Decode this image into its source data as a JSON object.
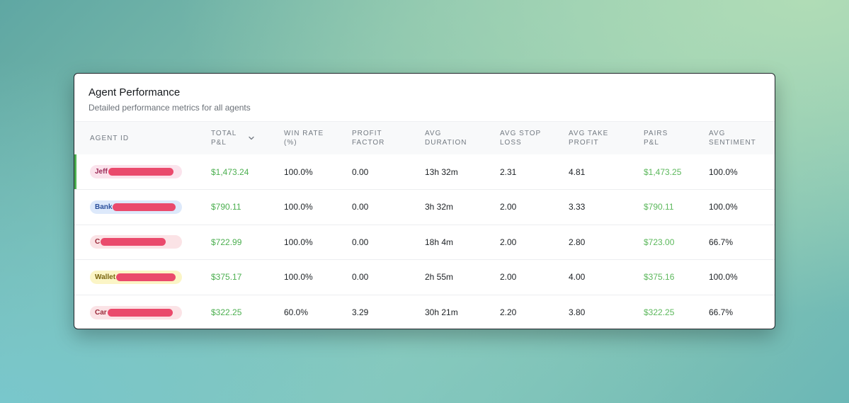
{
  "card": {
    "title": "Agent Performance",
    "subtitle": "Detailed performance metrics for all agents"
  },
  "columns": [
    {
      "line1": "AGENT ID",
      "line2": ""
    },
    {
      "line1": "TOTAL",
      "line2": "P&L",
      "sort_icon": "chevron-down-icon"
    },
    {
      "line1": "WIN RATE",
      "line2": "(%)"
    },
    {
      "line1": "PROFIT",
      "line2": "FACTOR"
    },
    {
      "line1": "AVG",
      "line2": "DURATION"
    },
    {
      "line1": "AVG STOP",
      "line2": "LOSS"
    },
    {
      "line1": "AVG TAKE",
      "line2": "PROFIT"
    },
    {
      "line1": "PAIRS",
      "line2": "P&L"
    },
    {
      "line1": "AVG",
      "line2": "SENTIMENT"
    }
  ],
  "rows": [
    {
      "agent_prefix": "Jeff",
      "pill_bg": "#fbe3ec",
      "pill_fg": "#9b2a56",
      "redact_width": 0.72,
      "active": true,
      "total_pnl": "$1,473.24",
      "win_rate": "100.0%",
      "profit_factor": "0.00",
      "avg_duration": "13h 32m",
      "avg_stop_loss": "2.31",
      "avg_take_profit": "4.81",
      "pairs_pnl": "$1,473.25",
      "avg_sentiment": "100.0%"
    },
    {
      "agent_prefix": "Bank",
      "pill_bg": "#dde9fb",
      "pill_fg": "#2a4f9b",
      "redact_width": 0.72,
      "active": false,
      "total_pnl": "$790.11",
      "win_rate": "100.0%",
      "profit_factor": "0.00",
      "avg_duration": "3h 32m",
      "avg_stop_loss": "2.00",
      "avg_take_profit": "3.33",
      "pairs_pnl": "$790.11",
      "avg_sentiment": "100.0%"
    },
    {
      "agent_prefix": "C",
      "pill_bg": "#fbe3e6",
      "pill_fg": "#9b2a3a",
      "redact_width": 0.72,
      "active": false,
      "total_pnl": "$722.99",
      "win_rate": "100.0%",
      "profit_factor": "0.00",
      "avg_duration": "18h 4m",
      "avg_stop_loss": "2.00",
      "avg_take_profit": "2.80",
      "pairs_pnl": "$723.00",
      "avg_sentiment": "66.7%"
    },
    {
      "agent_prefix": "Wallet",
      "pill_bg": "#fbf5c6",
      "pill_fg": "#7a6510",
      "redact_width": 0.72,
      "active": false,
      "total_pnl": "$375.17",
      "win_rate": "100.0%",
      "profit_factor": "0.00",
      "avg_duration": "2h 55m",
      "avg_stop_loss": "2.00",
      "avg_take_profit": "4.00",
      "pairs_pnl": "$375.16",
      "avg_sentiment": "100.0%"
    },
    {
      "agent_prefix": "Car",
      "pill_bg": "#fbe3e6",
      "pill_fg": "#9b2a3a",
      "redact_width": 0.72,
      "active": false,
      "total_pnl": "$322.25",
      "win_rate": "60.0%",
      "profit_factor": "3.29",
      "avg_duration": "30h 21m",
      "avg_stop_loss": "2.20",
      "avg_take_profit": "3.80",
      "pairs_pnl": "$322.25",
      "avg_sentiment": "66.7%"
    }
  ]
}
